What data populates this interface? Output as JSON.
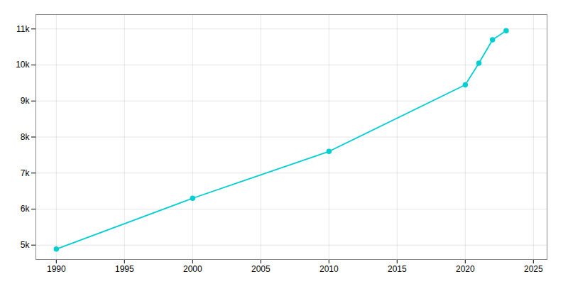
{
  "chart_data": {
    "type": "line",
    "x": [
      1990,
      2000,
      2010,
      2020,
      2021,
      2022,
      2023
    ],
    "values": [
      4890,
      6300,
      7600,
      9450,
      10050,
      10700,
      10950
    ],
    "color": "#00CED1",
    "marker": "o",
    "xlim": [
      1988.5,
      2026
    ],
    "ylim": [
      4600,
      11400
    ],
    "xticks": [
      1990,
      1995,
      2000,
      2005,
      2010,
      2015,
      2020,
      2025
    ],
    "yticks": [
      {
        "value": 5000,
        "label": "5k"
      },
      {
        "value": 6000,
        "label": "6k"
      },
      {
        "value": 7000,
        "label": "7k"
      },
      {
        "value": 8000,
        "label": "8k"
      },
      {
        "value": 9000,
        "label": "9k"
      },
      {
        "value": 10000,
        "label": "10k"
      },
      {
        "value": 11000,
        "label": "11k"
      }
    ],
    "grid": true
  }
}
